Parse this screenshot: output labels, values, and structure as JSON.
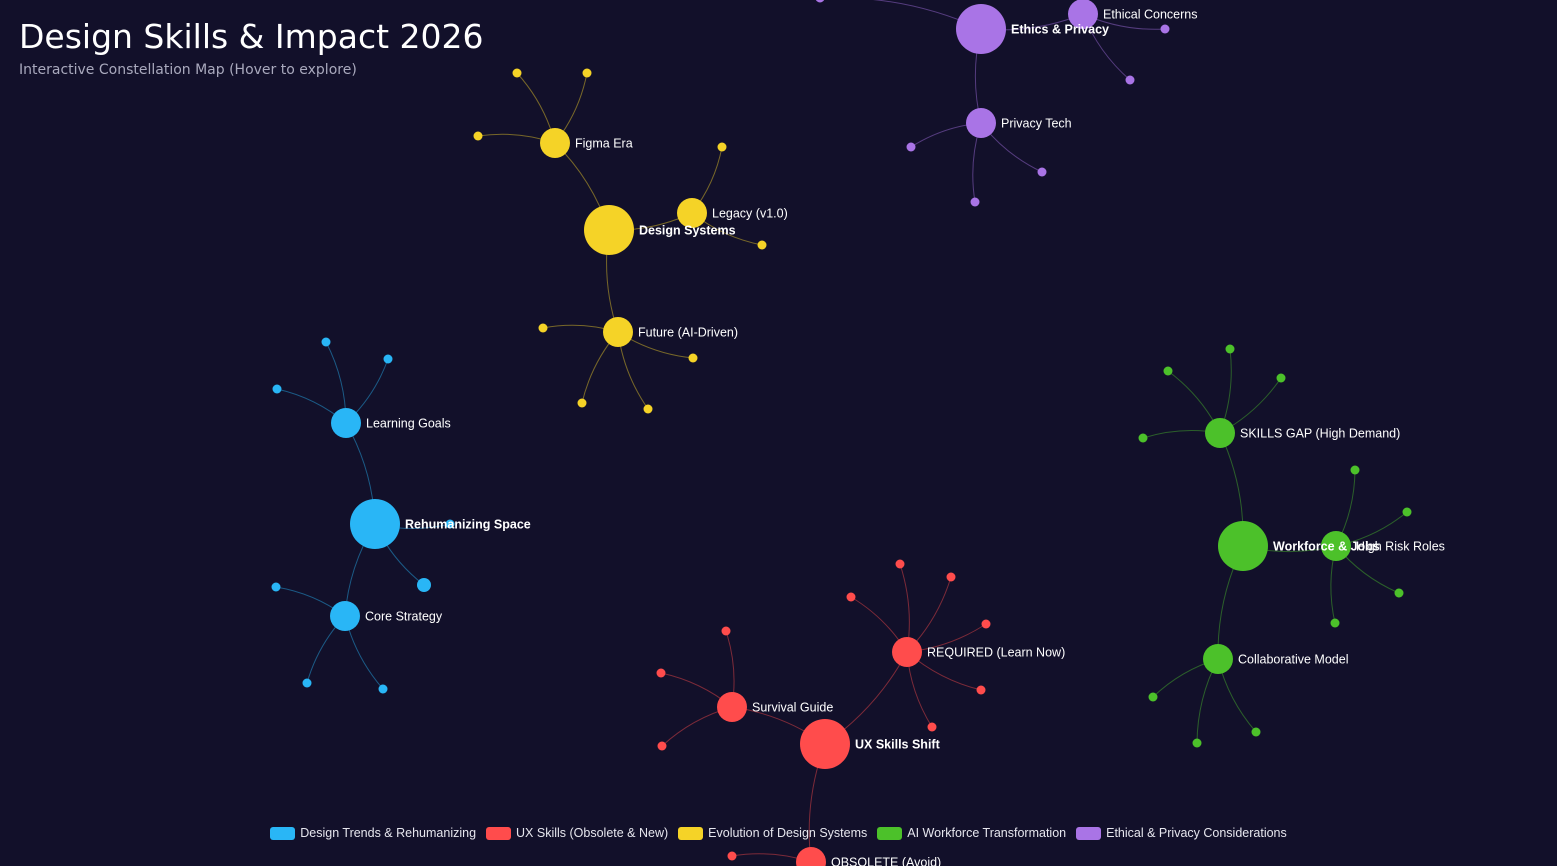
{
  "header": {
    "title": "Design Skills & Impact 2026",
    "subtitle": "Interactive Constellation Map (Hover to explore)"
  },
  "categories": [
    {
      "name": "Design Trends & Rehumanizing",
      "color": "#29b6f6"
    },
    {
      "name": "UX Skills (Obsolete & New)",
      "color": "#ff4c4c"
    },
    {
      "name": "Evolution of Design Systems",
      "color": "#f5d327"
    },
    {
      "name": "AI Workforce Transformation",
      "color": "#4cc12a"
    },
    {
      "name": "Ethical & Privacy Considerations",
      "color": "#a974e6"
    }
  ],
  "graph": {
    "hubs": [
      {
        "id": "rehumanizing",
        "label": "Rehumanizing Space",
        "category": 0
      },
      {
        "id": "design-systems",
        "label": "Design Systems",
        "category": 2
      },
      {
        "id": "ethics",
        "label": "Ethics & Privacy",
        "category": 4
      },
      {
        "id": "workforce",
        "label": "Workforce & Jobs",
        "category": 3
      },
      {
        "id": "ux-skills",
        "label": "UX Skills Shift",
        "category": 1
      }
    ],
    "branches": [
      {
        "id": "learning-goals",
        "label": "Learning Goals",
        "parent": "rehumanizing",
        "category": 0
      },
      {
        "id": "core-strategy",
        "label": "Core Strategy",
        "parent": "rehumanizing",
        "category": 0
      },
      {
        "id": "figma-era",
        "label": "Figma Era",
        "parent": "design-systems",
        "category": 2
      },
      {
        "id": "legacy",
        "label": "Legacy (v1.0)",
        "parent": "design-systems",
        "category": 2
      },
      {
        "id": "future",
        "label": "Future (AI-Driven)",
        "parent": "design-systems",
        "category": 2
      },
      {
        "id": "ethical-concerns",
        "label": "Ethical Concerns",
        "parent": "ethics",
        "category": 4
      },
      {
        "id": "privacy-tech",
        "label": "Privacy Tech",
        "parent": "ethics",
        "category": 4
      },
      {
        "id": "skills-gap",
        "label": "SKILLS GAP (High Demand)",
        "parent": "workforce",
        "category": 3
      },
      {
        "id": "high-risk",
        "label": "High Risk Roles",
        "parent": "workforce",
        "category": 3
      },
      {
        "id": "collaborative",
        "label": "Collaborative Model",
        "parent": "workforce",
        "category": 3
      },
      {
        "id": "required",
        "label": "REQUIRED (Learn Now)",
        "parent": "ux-skills",
        "category": 1
      },
      {
        "id": "survival",
        "label": "Survival Guide",
        "parent": "ux-skills",
        "category": 1
      },
      {
        "id": "obsolete",
        "label": "OBSOLETE (Avoid)",
        "parent": "ux-skills",
        "category": 1
      }
    ]
  }
}
